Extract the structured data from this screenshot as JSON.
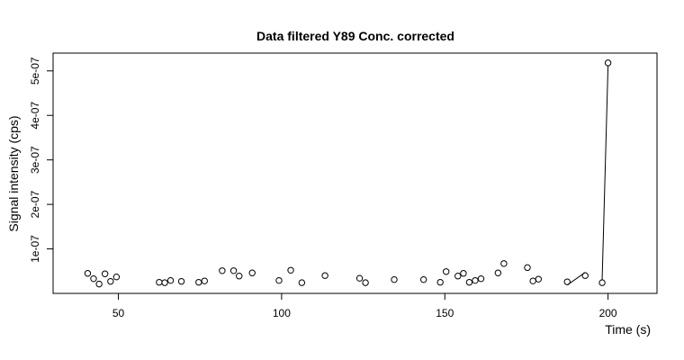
{
  "chart_data": {
    "type": "scatter",
    "title": "Data filtered Y89 Conc. corrected",
    "xlabel": "Time (s)",
    "ylabel": "Signal intensity (cps)",
    "xlim": [
      30,
      215
    ],
    "ylim": [
      0,
      5.4e-07
    ],
    "x_ticks": [
      50,
      100,
      150,
      200
    ],
    "x_tick_labels": [
      "50",
      "100",
      "150",
      "200"
    ],
    "y_ticks": [
      1e-07,
      2e-07,
      3e-07,
      4e-07,
      5e-07
    ],
    "y_tick_labels": [
      "1e-07",
      "2e-07",
      "3e-07",
      "4e-07",
      "5e-07"
    ],
    "grid": false,
    "points": [
      {
        "x": 40.6,
        "y": 4.5e-08
      },
      {
        "x": 42.4,
        "y": 3.3e-08
      },
      {
        "x": 44.1,
        "y": 2.1e-08
      },
      {
        "x": 45.9,
        "y": 4.4e-08
      },
      {
        "x": 47.6,
        "y": 2.7e-08
      },
      {
        "x": 49.4,
        "y": 3.7e-08
      },
      {
        "x": 62.5,
        "y": 2.5e-08
      },
      {
        "x": 64.2,
        "y": 2.4e-08
      },
      {
        "x": 66.0,
        "y": 2.9e-08
      },
      {
        "x": 69.3,
        "y": 2.7e-08
      },
      {
        "x": 74.6,
        "y": 2.5e-08
      },
      {
        "x": 76.4,
        "y": 2.8e-08
      },
      {
        "x": 81.8,
        "y": 5.1e-08
      },
      {
        "x": 85.3,
        "y": 5.1e-08
      },
      {
        "x": 87.0,
        "y": 3.9e-08
      },
      {
        "x": 91.0,
        "y": 4.6e-08
      },
      {
        "x": 99.2,
        "y": 2.9e-08
      },
      {
        "x": 102.8,
        "y": 5.2e-08
      },
      {
        "x": 106.2,
        "y": 2.4e-08
      },
      {
        "x": 113.3,
        "y": 4e-08
      },
      {
        "x": 123.9,
        "y": 3.4e-08
      },
      {
        "x": 125.7,
        "y": 2.4e-08
      },
      {
        "x": 134.5,
        "y": 3.1e-08
      },
      {
        "x": 143.5,
        "y": 3.1e-08
      },
      {
        "x": 148.6,
        "y": 2.5e-08
      },
      {
        "x": 150.4,
        "y": 4.9e-08
      },
      {
        "x": 154.0,
        "y": 3.9e-08
      },
      {
        "x": 155.7,
        "y": 4.5e-08
      },
      {
        "x": 157.5,
        "y": 2.5e-08
      },
      {
        "x": 159.3,
        "y": 2.9e-08
      },
      {
        "x": 161.1,
        "y": 3.3e-08
      },
      {
        "x": 166.3,
        "y": 4.6e-08
      },
      {
        "x": 168.1,
        "y": 6.7e-08
      },
      {
        "x": 175.3,
        "y": 5.8e-08
      },
      {
        "x": 177.0,
        "y": 2.8e-08
      },
      {
        "x": 178.7,
        "y": 3.2e-08
      },
      {
        "x": 187.5,
        "y": 2.6e-08
      },
      {
        "x": 193.0,
        "y": 4e-08
      },
      {
        "x": 198.2,
        "y": 2.4e-08
      },
      {
        "x": 200.0,
        "y": 5.18e-07
      }
    ],
    "connected_segments": [
      [
        37,
        36
      ],
      [
        38,
        39
      ]
    ]
  }
}
